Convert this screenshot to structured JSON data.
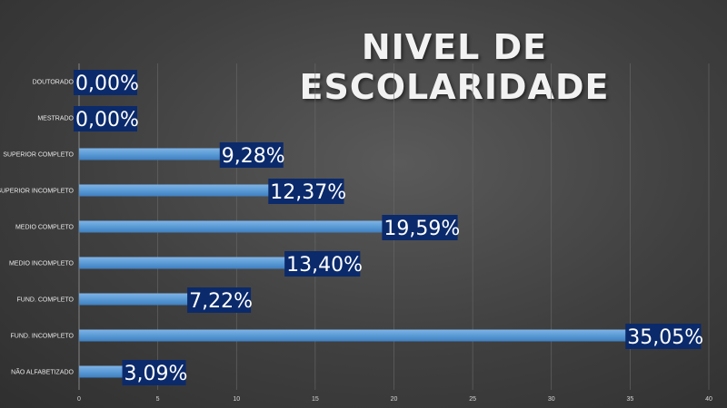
{
  "chart_data": {
    "type": "bar",
    "orientation": "horizontal",
    "title": "NIVEL DE ESCOLARIDADE",
    "categories": [
      "DOUTORADO",
      "MESTRADO",
      "SUPERIOR COMPLETO",
      "SUPERIOR INCOMPLETO",
      "MEDIO COMPLETO",
      "MEDIO INCOMPLETO",
      "FUND. COMPLETO",
      "FUND. INCOMPLETO",
      "NÃO ALFABETIZADO"
    ],
    "values": [
      0,
      0,
      9.28,
      12.37,
      19.59,
      13.4,
      7.22,
      35.05,
      3.09
    ],
    "data_labels": [
      "0,00%",
      "0,00%",
      "9,28%",
      "12,37%",
      "19,59%",
      "13,40%",
      "7,22%",
      "35,05%",
      "3,09%"
    ],
    "xlim": [
      0,
      40
    ],
    "xticks": [
      "0",
      "5",
      "10",
      "15",
      "20",
      "25",
      "30",
      "35",
      "40"
    ],
    "grid": true,
    "colors": {
      "bar": "#5b9bd5",
      "bar_dark": "#2e75b6",
      "label_bg": "#0b2a6b",
      "accent_tick": "#c0504d"
    }
  }
}
